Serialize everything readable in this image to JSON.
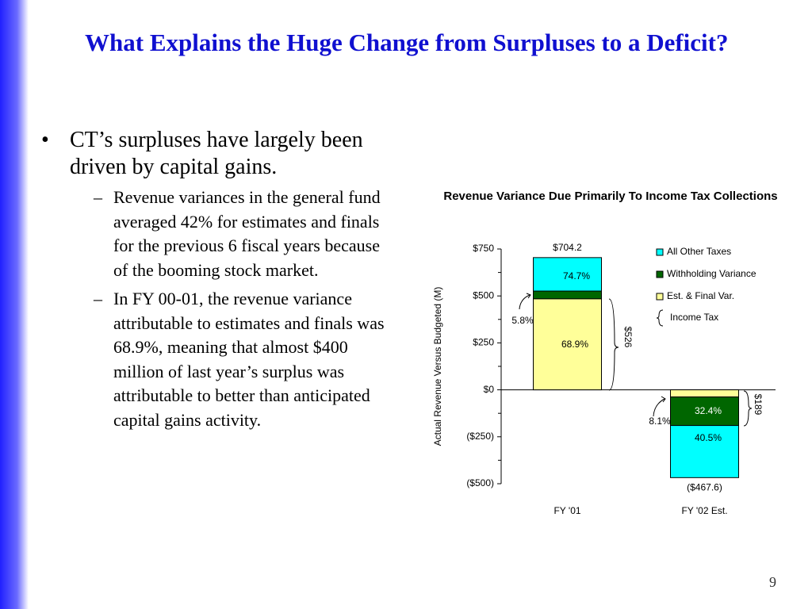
{
  "slide": {
    "title": "What Explains the Huge Change from Surpluses to a Deficit?",
    "bullets": [
      {
        "text": "CT’s surpluses have largely been driven by capital gains.",
        "sub": [
          "Revenue variances in the general fund averaged 42% for estimates and finals for the previous 6 fiscal years because of the booming stock market.",
          "In FY 00-01, the revenue variance attributable to estimates and finals was 68.9%, meaning that almost $400 million of last year’s surplus was attributable to better than anticipated capital gains activity."
        ]
      }
    ],
    "page_number": "9"
  },
  "chart_data": {
    "type": "stacked_bar",
    "title": "Revenue Variance Due Primarily To Income Tax Collections",
    "y_label": "Actual Revenue Versus Budgeted (M)",
    "categories": [
      "FY '01",
      "FY '02 Est."
    ],
    "series": [
      {
        "name": "Est. & Final Var.",
        "color": "#ffff99",
        "values": [
          485,
          -38
        ]
      },
      {
        "name": "Withholding Variance",
        "color": "#006600",
        "values": [
          41,
          -152
        ]
      },
      {
        "name": "All Other Taxes",
        "color": "#00ffff",
        "values": [
          178.2,
          -277.6
        ]
      }
    ],
    "legend_note": "Income Tax",
    "segment_labels": [
      [
        "68.9%",
        "8.1%"
      ],
      [
        "5.8%",
        "32.4%"
      ],
      [
        "74.7%",
        "40.5%"
      ]
    ],
    "total_labels": [
      "$704.2",
      "($467.6)"
    ],
    "brace_labels": [
      "$526",
      "$189"
    ],
    "ylim": [
      -500,
      750
    ],
    "yticks": [
      {
        "value": -500,
        "label": "($500)"
      },
      {
        "value": -250,
        "label": "($250)"
      },
      {
        "value": 0,
        "label": "$0"
      },
      {
        "value": 250,
        "label": "$250"
      },
      {
        "value": 500,
        "label": "$500"
      },
      {
        "value": 750,
        "label": "$750"
      }
    ],
    "yminor_ticks": [
      -375,
      -125,
      125,
      375,
      625
    ]
  }
}
